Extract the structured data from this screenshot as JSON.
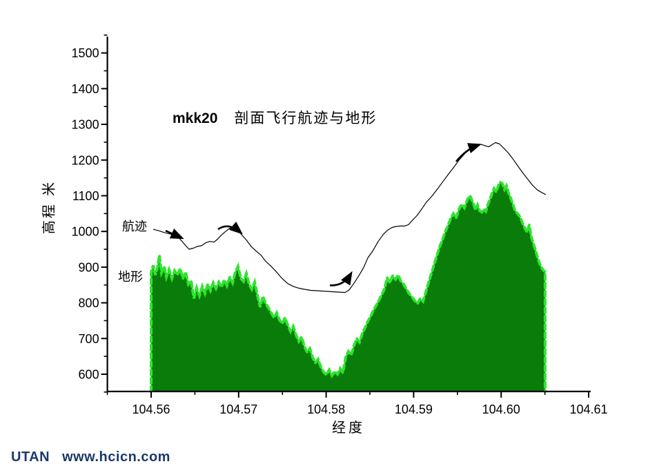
{
  "page": {
    "background": "#ffffff"
  },
  "title": {
    "prefix": "mkk20",
    "main": "剖面飞行航迹与地形"
  },
  "watermark": {
    "brand": "UTAN",
    "url": "www.hcicn.com",
    "color": "#1b3a68"
  },
  "chart_data": {
    "type": "area",
    "title": "mkk20 剖面飞行航迹与地形",
    "xlabel": "经度",
    "ylabel": "高程 米",
    "xlim": [
      104.555,
      104.612
    ],
    "ylim": [
      545,
      1560
    ],
    "grid": "off",
    "legend_position": "inline-annotations",
    "x_major_ticks": [
      "104.56",
      "104.57",
      "104.58",
      "104.59",
      "104.60",
      "104.61"
    ],
    "x_minor_ticks": [
      104.555,
      104.565,
      104.575,
      104.585,
      104.595,
      104.605
    ],
    "y_major_ticks": [
      "600",
      "700",
      "800",
      "900",
      "1000",
      "1100",
      "1200",
      "1300",
      "1400",
      "1500"
    ],
    "y_minor_ticks": [
      550,
      650,
      750,
      850,
      950,
      1050,
      1150,
      1250,
      1350,
      1450,
      1550
    ],
    "annotations": {
      "track_label": "航迹",
      "terrain_label": "地形"
    },
    "series": [
      {
        "name": "航迹",
        "type": "line",
        "color": "#000000",
        "points": [
          [
            104.56024,
            1006
          ],
          [
            104.56087,
            1002
          ],
          [
            104.5615,
            997
          ],
          [
            104.56213,
            993
          ],
          [
            104.5626,
            990
          ],
          [
            104.56308,
            984
          ],
          [
            104.56355,
            972
          ],
          [
            104.56402,
            958
          ],
          [
            104.56434,
            950
          ],
          [
            104.56481,
            953
          ],
          [
            104.56528,
            958
          ],
          [
            104.56576,
            960
          ],
          [
            104.56623,
            968
          ],
          [
            104.5667,
            972
          ],
          [
            104.56718,
            970
          ],
          [
            104.56757,
            978
          ],
          [
            104.56804,
            990
          ],
          [
            104.56852,
            1000
          ],
          [
            104.56899,
            1009
          ],
          [
            104.56938,
            1013
          ],
          [
            104.56986,
            1006
          ],
          [
            104.57033,
            991
          ],
          [
            104.57088,
            976
          ],
          [
            104.57143,
            958
          ],
          [
            104.57199,
            945
          ],
          [
            104.57254,
            934
          ],
          [
            104.57309,
            916
          ],
          [
            104.57364,
            904
          ],
          [
            104.57427,
            888
          ],
          [
            104.5749,
            870
          ],
          [
            104.57561,
            854
          ],
          [
            104.57624,
            846
          ],
          [
            104.57688,
            841
          ],
          [
            104.57751,
            838
          ],
          [
            104.57822,
            835
          ],
          [
            104.57885,
            834
          ],
          [
            104.57948,
            833
          ],
          [
            104.58019,
            832
          ],
          [
            104.58082,
            831
          ],
          [
            104.58145,
            830
          ],
          [
            104.58216,
            829
          ],
          [
            104.58263,
            836
          ],
          [
            104.58311,
            852
          ],
          [
            104.58374,
            876
          ],
          [
            104.58429,
            899
          ],
          [
            104.58476,
            926
          ],
          [
            104.58532,
            945
          ],
          [
            104.58595,
            972
          ],
          [
            104.58658,
            993
          ],
          [
            104.58705,
            1004
          ],
          [
            104.58752,
            1011
          ],
          [
            104.588,
            1014
          ],
          [
            104.58847,
            1015
          ],
          [
            104.58894,
            1015
          ],
          [
            104.58941,
            1019
          ],
          [
            104.58989,
            1032
          ],
          [
            104.59036,
            1044
          ],
          [
            104.59091,
            1062
          ],
          [
            104.59146,
            1082
          ],
          [
            104.59209,
            1099
          ],
          [
            104.59272,
            1119
          ],
          [
            104.59336,
            1140
          ],
          [
            104.59399,
            1161
          ],
          [
            104.59462,
            1181
          ],
          [
            104.59525,
            1202
          ],
          [
            104.59588,
            1219
          ],
          [
            104.59659,
            1233
          ],
          [
            104.59715,
            1241
          ],
          [
            104.5977,
            1244
          ],
          [
            104.59817,
            1240
          ],
          [
            104.59856,
            1237
          ],
          [
            104.59896,
            1243
          ],
          [
            104.59935,
            1249
          ],
          [
            104.59982,
            1245
          ],
          [
            104.6003,
            1233
          ],
          [
            104.60085,
            1219
          ],
          [
            104.6014,
            1201
          ],
          [
            104.60195,
            1182
          ],
          [
            104.6025,
            1163
          ],
          [
            104.60305,
            1146
          ],
          [
            104.6036,
            1129
          ],
          [
            104.60415,
            1116
          ],
          [
            104.60463,
            1109
          ],
          [
            104.6051,
            1103
          ]
        ]
      },
      {
        "name": "地形",
        "type": "area",
        "fill": "#097c09",
        "edge": "#2de52d",
        "points": [
          [
            104.56,
            885
          ],
          [
            104.56024,
            905
          ],
          [
            104.56047,
            878
          ],
          [
            104.56071,
            898
          ],
          [
            104.56095,
            933
          ],
          [
            104.56118,
            884
          ],
          [
            104.5615,
            902
          ],
          [
            104.56174,
            872
          ],
          [
            104.56205,
            893
          ],
          [
            104.56237,
            868
          ],
          [
            104.56268,
            890
          ],
          [
            104.563,
            878
          ],
          [
            104.56331,
            896
          ],
          [
            104.56363,
            868
          ],
          [
            104.56394,
            886
          ],
          [
            104.56426,
            852
          ],
          [
            104.56457,
            862
          ],
          [
            104.56489,
            812
          ],
          [
            104.5652,
            842
          ],
          [
            104.56552,
            820
          ],
          [
            104.56584,
            846
          ],
          [
            104.56615,
            826
          ],
          [
            104.56647,
            852
          ],
          [
            104.56678,
            834
          ],
          [
            104.5671,
            856
          ],
          [
            104.56741,
            840
          ],
          [
            104.56773,
            858
          ],
          [
            104.56804,
            844
          ],
          [
            104.56836,
            864
          ],
          [
            104.56867,
            848
          ],
          [
            104.56899,
            872
          ],
          [
            104.56931,
            856
          ],
          [
            104.56962,
            886
          ],
          [
            104.56994,
            902
          ],
          [
            104.57025,
            868
          ],
          [
            104.57057,
            860
          ],
          [
            104.57088,
            882
          ],
          [
            104.5712,
            852
          ],
          [
            104.57151,
            838
          ],
          [
            104.57183,
            858
          ],
          [
            104.57214,
            822
          ],
          [
            104.57246,
            788
          ],
          [
            104.57277,
            818
          ],
          [
            104.57309,
            798
          ],
          [
            104.57341,
            786
          ],
          [
            104.57372,
            772
          ],
          [
            104.57404,
            758
          ],
          [
            104.57435,
            772
          ],
          [
            104.57467,
            752
          ],
          [
            104.57498,
            742
          ],
          [
            104.5753,
            758
          ],
          [
            104.57561,
            738
          ],
          [
            104.57593,
            720
          ],
          [
            104.57624,
            734
          ],
          [
            104.57656,
            710
          ],
          [
            104.57688,
            692
          ],
          [
            104.57719,
            704
          ],
          [
            104.57751,
            678
          ],
          [
            104.57782,
            662
          ],
          [
            104.57814,
            672
          ],
          [
            104.57845,
            648
          ],
          [
            104.57877,
            632
          ],
          [
            104.57908,
            642
          ],
          [
            104.5794,
            620
          ],
          [
            104.57971,
            606
          ],
          [
            104.58003,
            598
          ],
          [
            104.58035,
            612
          ],
          [
            104.58066,
            596
          ],
          [
            104.58098,
            608
          ],
          [
            104.58129,
            600
          ],
          [
            104.58161,
            616
          ],
          [
            104.58192,
            604
          ],
          [
            104.58224,
            648
          ],
          [
            104.58255,
            664
          ],
          [
            104.58287,
            654
          ],
          [
            104.58318,
            680
          ],
          [
            104.5835,
            700
          ],
          [
            104.58382,
            690
          ],
          [
            104.58413,
            714
          ],
          [
            104.58445,
            730
          ],
          [
            104.58476,
            748
          ],
          [
            104.58508,
            762
          ],
          [
            104.58539,
            778
          ],
          [
            104.58571,
            792
          ],
          [
            104.58602,
            806
          ],
          [
            104.58634,
            822
          ],
          [
            104.58665,
            838
          ],
          [
            104.58697,
            870
          ],
          [
            104.58729,
            856
          ],
          [
            104.5876,
            876
          ],
          [
            104.58792,
            866
          ],
          [
            104.58823,
            878
          ],
          [
            104.58855,
            860
          ],
          [
            104.58886,
            852
          ],
          [
            104.58918,
            838
          ],
          [
            104.58949,
            826
          ],
          [
            104.58981,
            816
          ],
          [
            104.59013,
            806
          ],
          [
            104.59044,
            798
          ],
          [
            104.59076,
            812
          ],
          [
            104.59107,
            804
          ],
          [
            104.59139,
            830
          ],
          [
            104.5917,
            856
          ],
          [
            104.59202,
            882
          ],
          [
            104.59233,
            906
          ],
          [
            104.59265,
            932
          ],
          [
            104.59296,
            956
          ],
          [
            104.59328,
            976
          ],
          [
            104.5936,
            998
          ],
          [
            104.59391,
            1016
          ],
          [
            104.59423,
            1036
          ],
          [
            104.59454,
            1050
          ],
          [
            104.59486,
            1038
          ],
          [
            104.59517,
            1062
          ],
          [
            104.59549,
            1076
          ],
          [
            104.5958,
            1066
          ],
          [
            104.59612,
            1088
          ],
          [
            104.59644,
            1100
          ],
          [
            104.59683,
            1078
          ],
          [
            104.59707,
            1060
          ],
          [
            104.5973,
            1074
          ],
          [
            104.59754,
            1058
          ],
          [
            104.59778,
            1054
          ],
          [
            104.59801,
            1062
          ],
          [
            104.59825,
            1056
          ],
          [
            104.59849,
            1076
          ],
          [
            104.59872,
            1090
          ],
          [
            104.59896,
            1106
          ],
          [
            104.59919,
            1120
          ],
          [
            104.59943,
            1110
          ],
          [
            104.59967,
            1128
          ],
          [
            104.5999,
            1138
          ],
          [
            104.60014,
            1134
          ],
          [
            104.60038,
            1118
          ],
          [
            104.60061,
            1128
          ],
          [
            104.60085,
            1108
          ],
          [
            104.60108,
            1094
          ],
          [
            104.60132,
            1078
          ],
          [
            104.60156,
            1060
          ],
          [
            104.60179,
            1052
          ],
          [
            104.60203,
            1046
          ],
          [
            104.60227,
            1034
          ],
          [
            104.6025,
            1020
          ],
          [
            104.60274,
            1008
          ],
          [
            104.60297,
            998
          ],
          [
            104.60321,
            1018
          ],
          [
            104.60345,
            984
          ],
          [
            104.60368,
            966
          ],
          [
            104.60392,
            948
          ],
          [
            104.60415,
            928
          ],
          [
            104.60439,
            910
          ],
          [
            104.60463,
            898
          ],
          [
            104.60486,
            890
          ],
          [
            104.60502,
            887
          ]
        ]
      }
    ],
    "arrows": [
      {
        "name": "track-direction-arrow-1",
        "points": [
          [
            104.56166,
            1002
          ],
          [
            104.56339,
            983
          ]
        ]
      },
      {
        "name": "track-direction-arrow-2",
        "points": [
          [
            104.56765,
            1006
          ],
          [
            104.56883,
            1026
          ],
          [
            104.57017,
            998
          ]
        ]
      },
      {
        "name": "track-direction-arrow-3",
        "points": [
          [
            104.58043,
            849
          ],
          [
            104.582,
            847
          ],
          [
            104.58279,
            880
          ]
        ]
      },
      {
        "name": "track-direction-arrow-4",
        "points": [
          [
            104.59486,
            1196
          ],
          [
            104.59604,
            1231
          ],
          [
            104.59738,
            1242
          ]
        ]
      }
    ]
  }
}
